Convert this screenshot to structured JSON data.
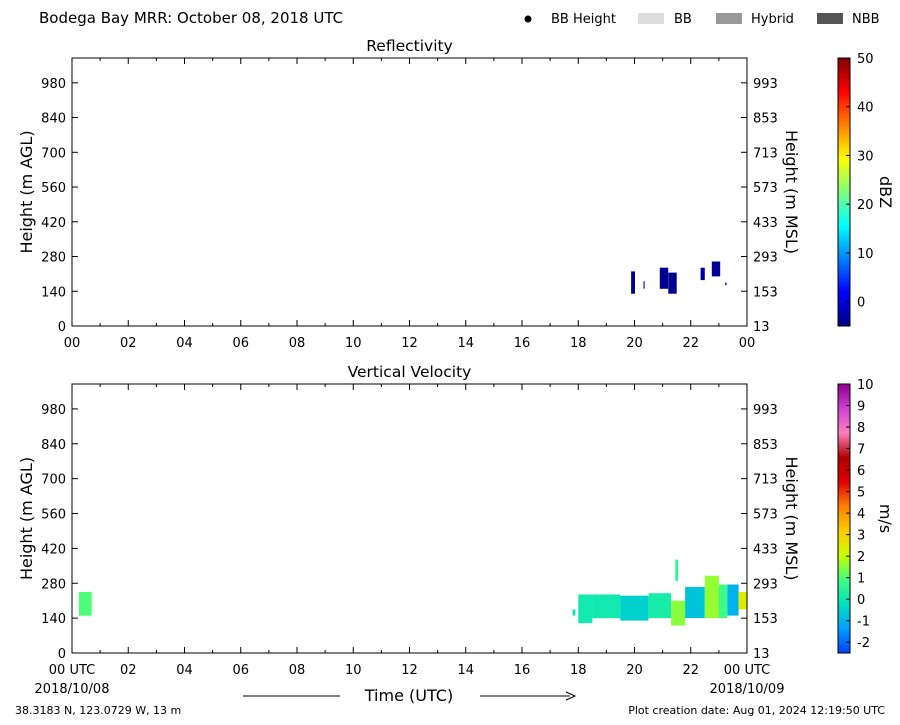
{
  "header": {
    "title": "Bodega Bay MRR:  October 08, 2018 UTC",
    "legend": [
      {
        "label": "BB Height",
        "swatch": "dot",
        "color": "#000000"
      },
      {
        "label": "BB",
        "swatch": "rect",
        "color": "#dcdcdc"
      },
      {
        "label": "Hybrid",
        "swatch": "rect",
        "color": "#999999"
      },
      {
        "label": "NBB",
        "swatch": "rect",
        "color": "#555555"
      }
    ]
  },
  "footer": {
    "location": "38.3183 N, 123.0729 W, 13 m",
    "creation": "Plot creation date: Aug 01, 2024 12:19:50 UTC",
    "xlabel": "Time (UTC)",
    "date_start": "2018/10/08",
    "date_end": "2018/10/09"
  },
  "chart_data": [
    {
      "type": "heatmap",
      "title": "Reflectivity",
      "ylabel": "Height (m AGL)",
      "ylabel_right": "Height (m MSL)",
      "x_ticks": [
        "00",
        "02",
        "04",
        "06",
        "08",
        "10",
        "12",
        "14",
        "16",
        "18",
        "20",
        "22",
        "00"
      ],
      "y_ticks": [
        0,
        140,
        280,
        420,
        560,
        700,
        840,
        980
      ],
      "y_ticks_right": [
        13,
        153,
        293,
        433,
        573,
        713,
        853,
        993
      ],
      "xlim": [
        0,
        24
      ],
      "ylim": [
        0,
        1080
      ],
      "colorbar": {
        "label": "dBZ",
        "range": [
          -5,
          50
        ],
        "ticks": [
          0,
          10,
          20,
          30,
          40,
          50
        ],
        "stops": [
          "#00007f",
          "#0000ff",
          "#0080ff",
          "#00ffff",
          "#80ff80",
          "#ffff00",
          "#ff8000",
          "#ff0000",
          "#7f0000"
        ]
      },
      "cells": [
        {
          "t0": 19.88,
          "t1": 20.02,
          "h0": 130,
          "h1": 220,
          "v": -4
        },
        {
          "t0": 20.32,
          "t1": 20.36,
          "h0": 150,
          "h1": 180,
          "v": -3
        },
        {
          "t0": 20.9,
          "t1": 21.2,
          "h0": 150,
          "h1": 235,
          "v": -4
        },
        {
          "t0": 21.2,
          "t1": 21.5,
          "h0": 130,
          "h1": 215,
          "v": -4
        },
        {
          "t0": 22.35,
          "t1": 22.5,
          "h0": 185,
          "h1": 235,
          "v": -3
        },
        {
          "t0": 22.75,
          "t1": 23.05,
          "h0": 200,
          "h1": 260,
          "v": -4
        },
        {
          "t0": 23.22,
          "t1": 23.27,
          "h0": 165,
          "h1": 175,
          "v": -3
        }
      ]
    },
    {
      "type": "heatmap",
      "title": "Vertical Velocity",
      "ylabel": "Height (m AGL)",
      "ylabel_right": "Height (m MSL)",
      "x_ticks": [
        "00 UTC",
        "02",
        "04",
        "06",
        "08",
        "10",
        "12",
        "14",
        "16",
        "18",
        "20",
        "22",
        "00 UTC"
      ],
      "y_ticks": [
        0,
        140,
        280,
        420,
        560,
        700,
        840,
        980
      ],
      "y_ticks_right": [
        13,
        153,
        293,
        433,
        573,
        713,
        853,
        993
      ],
      "xlim": [
        0,
        24
      ],
      "ylim": [
        0,
        1080
      ],
      "colorbar": {
        "label": "m/s",
        "range": [
          -2.5,
          10
        ],
        "ticks": [
          -2,
          -1,
          0,
          1,
          2,
          3,
          4,
          5,
          6,
          7,
          8,
          9,
          10
        ],
        "stops": [
          "#0040ff",
          "#00a0ff",
          "#00e0c0",
          "#40ff80",
          "#ccff00",
          "#ffcc00",
          "#ff8000",
          "#e00000",
          "#b00000",
          "#ff80c0",
          "#d040d0",
          "#900090"
        ]
      },
      "cells": [
        {
          "t0": 0.25,
          "t1": 0.7,
          "h0": 150,
          "h1": 245,
          "v": 1
        },
        {
          "t0": 17.8,
          "t1": 17.9,
          "h0": 150,
          "h1": 175,
          "v": 0
        },
        {
          "t0": 18.0,
          "t1": 18.5,
          "h0": 120,
          "h1": 235,
          "v": 0.1
        },
        {
          "t0": 18.5,
          "t1": 19.5,
          "h0": 140,
          "h1": 235,
          "v": 0.1
        },
        {
          "t0": 19.5,
          "t1": 20.5,
          "h0": 130,
          "h1": 230,
          "v": -0.5
        },
        {
          "t0": 20.5,
          "t1": 21.3,
          "h0": 140,
          "h1": 240,
          "v": 0.2
        },
        {
          "t0": 21.3,
          "t1": 21.8,
          "h0": 110,
          "h1": 210,
          "v": 1.5
        },
        {
          "t0": 21.45,
          "t1": 21.55,
          "h0": 290,
          "h1": 375,
          "v": 0.6
        },
        {
          "t0": 21.8,
          "t1": 22.5,
          "h0": 140,
          "h1": 265,
          "v": -0.7
        },
        {
          "t0": 22.5,
          "t1": 23.0,
          "h0": 140,
          "h1": 310,
          "v": 1.6
        },
        {
          "t0": 23.0,
          "t1": 23.3,
          "h0": 140,
          "h1": 275,
          "v": 0.8
        },
        {
          "t0": 23.3,
          "t1": 23.7,
          "h0": 150,
          "h1": 275,
          "v": -1
        },
        {
          "t0": 23.7,
          "t1": 24.0,
          "h0": 175,
          "h1": 245,
          "v": 2.5
        }
      ]
    }
  ]
}
